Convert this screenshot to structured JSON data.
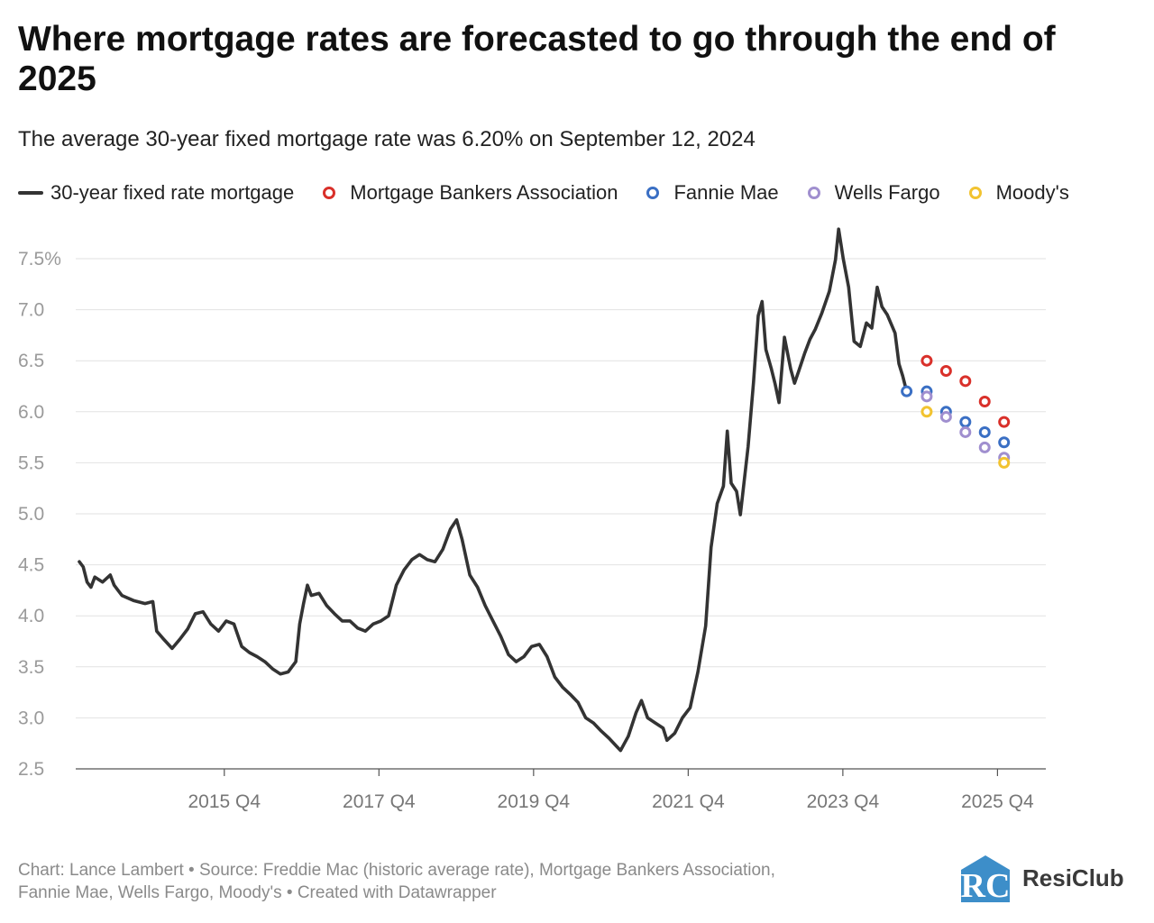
{
  "title": "Where mortgage rates are forecasted to go through the end of 2025",
  "subtitle": "The average 30-year fixed mortgage rate was 6.20% on September 12, 2024",
  "legend": [
    {
      "label": "30-year fixed rate mortgage",
      "color": "#333333",
      "kind": "line"
    },
    {
      "label": "Mortgage Bankers Association",
      "color": "#d9302a",
      "kind": "dot"
    },
    {
      "label": "Fannie Mae",
      "color": "#3a6fc4",
      "kind": "dot"
    },
    {
      "label": "Wells Fargo",
      "color": "#a08fcf",
      "kind": "dot"
    },
    {
      "label": "Moody's",
      "color": "#f2c330",
      "kind": "dot"
    }
  ],
  "footer": {
    "line1": "Chart: Lance Lambert • Source: Freddie Mac (historic average rate), Mortgage Bankers Association,",
    "line2": "Fannie Mae, Wells Fargo, Moody's • Created with Datawrapper"
  },
  "logo": {
    "text": "ResiClub",
    "icon": "resiclub-logo-icon",
    "color": "#3d8ec9"
  },
  "chart_data": {
    "type": "line",
    "xlabel": "",
    "ylabel": "",
    "ylim": [
      2.5,
      7.5
    ],
    "xlim": [
      2014.0,
      2026.5
    ],
    "yticks": [
      7.5,
      7.0,
      6.5,
      6.0,
      5.5,
      5.0,
      4.5,
      4.0,
      3.5,
      3.0,
      2.5
    ],
    "ytick_labels": [
      "7.5%",
      "7.0",
      "6.5",
      "6.0",
      "5.5",
      "5.0",
      "4.5",
      "4.0",
      "3.5",
      "3.0",
      "2.5"
    ],
    "xticks": [
      {
        "x": 2015.875,
        "label": "2015 Q4"
      },
      {
        "x": 2017.875,
        "label": "2017 Q4"
      },
      {
        "x": 2019.875,
        "label": "2019 Q4"
      },
      {
        "x": 2021.875,
        "label": "2021 Q4"
      },
      {
        "x": 2023.875,
        "label": "2023 Q4"
      },
      {
        "x": 2025.875,
        "label": "2025 Q4"
      }
    ],
    "grid": true,
    "legend_position": "top",
    "series": [
      {
        "name": "30-year fixed rate mortgage",
        "kind": "line",
        "color": "#333333",
        "points": [
          [
            2014.0,
            4.53
          ],
          [
            2014.05,
            4.48
          ],
          [
            2014.1,
            4.33
          ],
          [
            2014.15,
            4.28
          ],
          [
            2014.2,
            4.38
          ],
          [
            2014.3,
            4.33
          ],
          [
            2014.4,
            4.4
          ],
          [
            2014.45,
            4.3
          ],
          [
            2014.55,
            4.2
          ],
          [
            2014.7,
            4.15
          ],
          [
            2014.85,
            4.12
          ],
          [
            2014.95,
            4.14
          ],
          [
            2015.0,
            3.85
          ],
          [
            2015.08,
            3.78
          ],
          [
            2015.2,
            3.68
          ],
          [
            2015.3,
            3.77
          ],
          [
            2015.4,
            3.87
          ],
          [
            2015.5,
            4.02
          ],
          [
            2015.6,
            4.04
          ],
          [
            2015.7,
            3.92
          ],
          [
            2015.8,
            3.85
          ],
          [
            2015.9,
            3.95
          ],
          [
            2016.0,
            3.92
          ],
          [
            2016.1,
            3.7
          ],
          [
            2016.2,
            3.64
          ],
          [
            2016.3,
            3.6
          ],
          [
            2016.4,
            3.55
          ],
          [
            2016.5,
            3.48
          ],
          [
            2016.6,
            3.43
          ],
          [
            2016.7,
            3.45
          ],
          [
            2016.8,
            3.55
          ],
          [
            2016.85,
            3.92
          ],
          [
            2016.9,
            4.12
          ],
          [
            2016.95,
            4.3
          ],
          [
            2017.0,
            4.2
          ],
          [
            2017.1,
            4.22
          ],
          [
            2017.2,
            4.1
          ],
          [
            2017.3,
            4.02
          ],
          [
            2017.4,
            3.95
          ],
          [
            2017.5,
            3.95
          ],
          [
            2017.6,
            3.88
          ],
          [
            2017.7,
            3.85
          ],
          [
            2017.8,
            3.92
          ],
          [
            2017.9,
            3.95
          ],
          [
            2018.0,
            4.0
          ],
          [
            2018.1,
            4.3
          ],
          [
            2018.2,
            4.45
          ],
          [
            2018.3,
            4.55
          ],
          [
            2018.4,
            4.6
          ],
          [
            2018.5,
            4.55
          ],
          [
            2018.6,
            4.53
          ],
          [
            2018.7,
            4.65
          ],
          [
            2018.8,
            4.85
          ],
          [
            2018.88,
            4.94
          ],
          [
            2018.95,
            4.75
          ],
          [
            2019.05,
            4.4
          ],
          [
            2019.15,
            4.28
          ],
          [
            2019.25,
            4.1
          ],
          [
            2019.35,
            3.95
          ],
          [
            2019.45,
            3.8
          ],
          [
            2019.55,
            3.62
          ],
          [
            2019.65,
            3.55
          ],
          [
            2019.75,
            3.6
          ],
          [
            2019.85,
            3.7
          ],
          [
            2019.95,
            3.72
          ],
          [
            2020.05,
            3.6
          ],
          [
            2020.15,
            3.4
          ],
          [
            2020.25,
            3.3
          ],
          [
            2020.35,
            3.23
          ],
          [
            2020.45,
            3.15
          ],
          [
            2020.55,
            3.0
          ],
          [
            2020.65,
            2.95
          ],
          [
            2020.75,
            2.87
          ],
          [
            2020.85,
            2.8
          ],
          [
            2020.95,
            2.72
          ],
          [
            2021.0,
            2.68
          ],
          [
            2021.05,
            2.75
          ],
          [
            2021.1,
            2.82
          ],
          [
            2021.2,
            3.05
          ],
          [
            2021.27,
            3.17
          ],
          [
            2021.35,
            3.0
          ],
          [
            2021.45,
            2.95
          ],
          [
            2021.55,
            2.9
          ],
          [
            2021.6,
            2.78
          ],
          [
            2021.7,
            2.85
          ],
          [
            2021.8,
            3.0
          ],
          [
            2021.9,
            3.1
          ],
          [
            2022.0,
            3.45
          ],
          [
            2022.1,
            3.9
          ],
          [
            2022.17,
            4.67
          ],
          [
            2022.25,
            5.1
          ],
          [
            2022.33,
            5.27
          ],
          [
            2022.38,
            5.81
          ],
          [
            2022.43,
            5.3
          ],
          [
            2022.5,
            5.22
          ],
          [
            2022.55,
            4.99
          ],
          [
            2022.65,
            5.66
          ],
          [
            2022.72,
            6.29
          ],
          [
            2022.78,
            6.94
          ],
          [
            2022.83,
            7.08
          ],
          [
            2022.88,
            6.61
          ],
          [
            2022.95,
            6.42
          ],
          [
            2023.0,
            6.27
          ],
          [
            2023.05,
            6.09
          ],
          [
            2023.12,
            6.73
          ],
          [
            2023.2,
            6.42
          ],
          [
            2023.25,
            6.28
          ],
          [
            2023.3,
            6.39
          ],
          [
            2023.38,
            6.57
          ],
          [
            2023.45,
            6.71
          ],
          [
            2023.52,
            6.81
          ],
          [
            2023.6,
            6.96
          ],
          [
            2023.7,
            7.18
          ],
          [
            2023.78,
            7.49
          ],
          [
            2023.82,
            7.79
          ],
          [
            2023.88,
            7.5
          ],
          [
            2023.95,
            7.22
          ],
          [
            2024.02,
            6.69
          ],
          [
            2024.1,
            6.64
          ],
          [
            2024.18,
            6.87
          ],
          [
            2024.25,
            6.82
          ],
          [
            2024.32,
            7.22
          ],
          [
            2024.38,
            7.03
          ],
          [
            2024.45,
            6.95
          ],
          [
            2024.5,
            6.86
          ],
          [
            2024.55,
            6.77
          ],
          [
            2024.6,
            6.47
          ],
          [
            2024.65,
            6.35
          ],
          [
            2024.7,
            6.2
          ]
        ]
      },
      {
        "name": "Mortgage Bankers Association",
        "kind": "dots",
        "color": "#d9302a",
        "points": [
          [
            2024.96,
            6.5
          ],
          [
            2025.21,
            6.4
          ],
          [
            2025.46,
            6.3
          ],
          [
            2025.71,
            6.1
          ],
          [
            2025.96,
            5.9
          ]
        ]
      },
      {
        "name": "Fannie Mae",
        "kind": "dots",
        "color": "#3a6fc4",
        "points": [
          [
            2024.7,
            6.2
          ],
          [
            2024.96,
            6.2
          ],
          [
            2025.21,
            6.0
          ],
          [
            2025.46,
            5.9
          ],
          [
            2025.71,
            5.8
          ],
          [
            2025.96,
            5.7
          ]
        ]
      },
      {
        "name": "Wells Fargo",
        "kind": "dots",
        "color": "#a08fcf",
        "points": [
          [
            2024.96,
            6.15
          ],
          [
            2025.21,
            5.95
          ],
          [
            2025.46,
            5.8
          ],
          [
            2025.71,
            5.65
          ],
          [
            2025.96,
            5.55
          ]
        ]
      },
      {
        "name": "Moody's",
        "kind": "dots",
        "color": "#f2c330",
        "points": [
          [
            2024.96,
            6.0
          ],
          [
            2025.96,
            5.5
          ]
        ]
      }
    ]
  }
}
